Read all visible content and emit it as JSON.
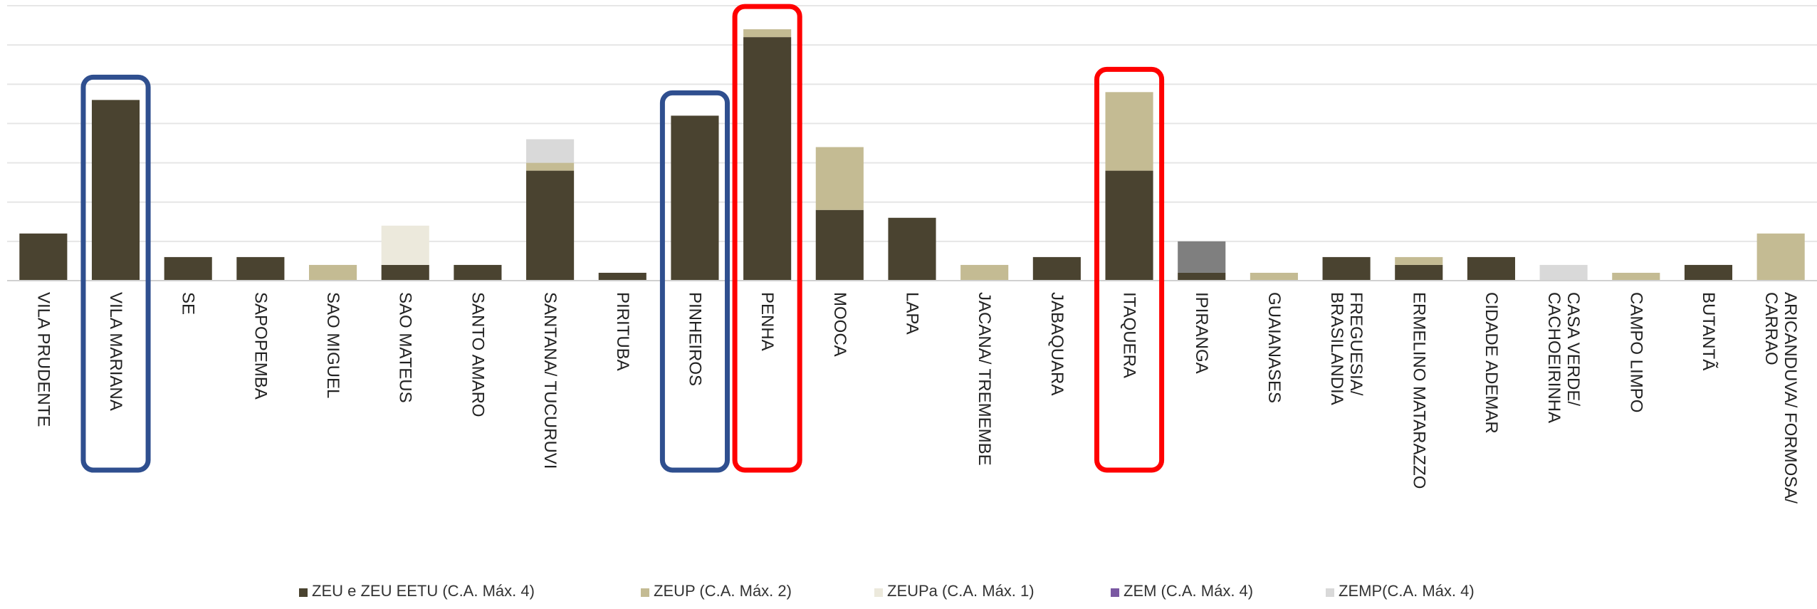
{
  "chart_data": {
    "type": "bar",
    "stacked": true,
    "title": "",
    "xlabel": "",
    "ylabel": "",
    "y_tick_labels_shown": false,
    "ylim": [
      0,
      35
    ],
    "grid": "horizontal",
    "legend_position": "bottom",
    "categories": [
      "VILA PRUDENTE",
      "VILA MARIANA",
      "SE",
      "SAPOPEMBA",
      "SAO MIGUEL",
      "SAO MATEUS",
      "SANTO AMARO",
      "SANTANA/ TUCURUVI",
      "PIRITUBA",
      "PINHEIROS",
      "PENHA",
      "MOOCA",
      "LAPA",
      "JACANA/ TREMEMBE",
      "JABAQUARA",
      "ITAQUERA",
      "IPIRANGA",
      "GUAIANASES",
      "FREGUESIA/ BRASILANDIA",
      "ERMELINO MATARAZZO",
      "CIDADE ADEMAR",
      "CASA VERDE/ CACHOEIRINHA",
      "CAMPO LIMPO",
      "BUTANTÃ",
      "ARICANDUVA/ FORMOSA/ CARRAO"
    ],
    "series": [
      {
        "name": "ZEU e ZEU EETU (C.A. Máx. 4)",
        "color": "#4a4330",
        "values": [
          6,
          23,
          3,
          3,
          0,
          2,
          2,
          14,
          1,
          21,
          31,
          9,
          8,
          0,
          3,
          14,
          1,
          0,
          3,
          2,
          3,
          0,
          0,
          2,
          0
        ]
      },
      {
        "name": "ZEUP (C.A. Máx. 2)",
        "color": "#c4bb93",
        "values": [
          0,
          0,
          0,
          0,
          2,
          0,
          0,
          1,
          0,
          0,
          1,
          8,
          0,
          2,
          0,
          10,
          0,
          1,
          0,
          1,
          0,
          0,
          1,
          0,
          6
        ]
      },
      {
        "name": "ZEUPa (C.A. Máx. 1)",
        "color": "#ece9dc",
        "values": [
          0,
          0,
          0,
          0,
          0,
          5,
          0,
          0,
          0,
          0,
          0,
          0,
          0,
          0,
          0,
          0,
          0,
          0,
          0,
          0,
          0,
          0,
          0,
          0,
          0
        ]
      },
      {
        "name": "ZEM (C.A. Máx. 4)",
        "color": "#7a58a2",
        "values": [
          0,
          0,
          0,
          0,
          0,
          0,
          0,
          0,
          0,
          0,
          0,
          0,
          0,
          0,
          0,
          0,
          0,
          0,
          0,
          0,
          0,
          0,
          0,
          0,
          0
        ]
      },
      {
        "name": "ZEMP(C.A. Máx. 4)",
        "color": "#d9d9d9",
        "values": [
          0,
          0,
          0,
          0,
          0,
          0,
          0,
          3,
          0,
          0,
          0,
          0,
          0,
          0,
          0,
          0,
          0,
          0,
          0,
          0,
          0,
          2,
          0,
          0,
          0
        ]
      },
      {
        "name": "",
        "color": "#7f7f7f",
        "values": [
          0,
          0,
          0,
          0,
          0,
          0,
          0,
          0,
          0,
          0,
          0,
          0,
          0,
          0,
          0,
          0,
          4,
          0,
          0,
          0,
          0,
          0,
          0,
          0,
          0
        ]
      }
    ],
    "highlights": [
      {
        "category": "VILA MARIANA",
        "color": "#2f4f8f"
      },
      {
        "category": "PINHEIROS",
        "color": "#2f4f8f"
      },
      {
        "category": "PENHA",
        "color": "#ff0000"
      },
      {
        "category": "ITAQUERA",
        "color": "#ff0000"
      }
    ]
  }
}
